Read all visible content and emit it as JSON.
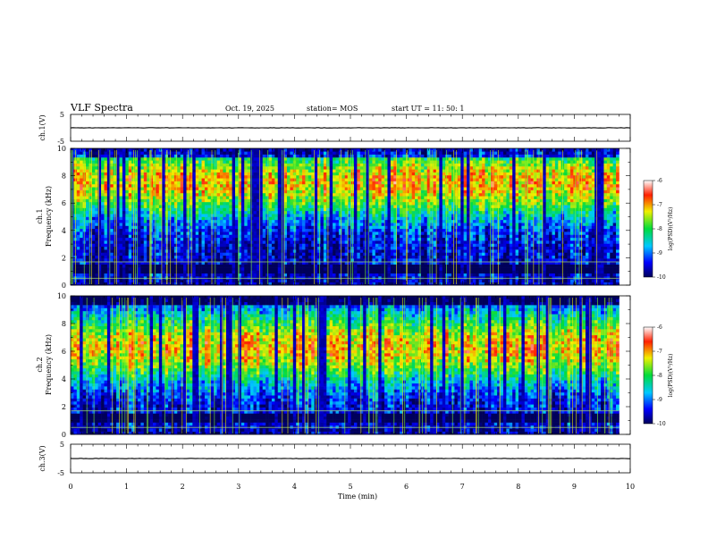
{
  "header": {
    "title": "VLF Spectra",
    "date": "Oct. 19, 2025",
    "station": "station= MOS",
    "start": "start  UT =   11: 50: 1"
  },
  "chart_data": [
    {
      "type": "line",
      "name": "ch1-voltage",
      "ylabel": "ch.1(V)",
      "ylim": [
        -5,
        5
      ],
      "yticks": [
        "5",
        "-5"
      ],
      "xlim": [
        0,
        10
      ],
      "trace_level": 0
    },
    {
      "type": "heatmap",
      "name": "ch1-spectrogram",
      "ylabel": "ch.1\nFrequency (kHz)",
      "ylim": [
        0,
        10
      ],
      "yticks": [
        "0",
        "2",
        "4",
        "6",
        "8",
        "10"
      ],
      "xlim": [
        0,
        10
      ],
      "data_end_min": 9.8,
      "band_center_khz": 7.5,
      "colorbar": {
        "label": "log(PSD)(V²/Hz)",
        "range": [
          -10,
          -6
        ],
        "ticks": [
          "-6",
          "-7",
          "-8",
          "-9",
          "-10"
        ]
      }
    },
    {
      "type": "heatmap",
      "name": "ch2-spectrogram",
      "ylabel": "ch.2\nFrequency (kHz)",
      "ylim": [
        0,
        10
      ],
      "yticks": [
        "0",
        "2",
        "4",
        "6",
        "8",
        "10"
      ],
      "xlim": [
        0,
        10
      ],
      "data_end_min": 9.8,
      "band_center_khz": 6.3,
      "colorbar": {
        "label": "log(PSD)(V²/Hz)",
        "range": [
          -10,
          -6
        ],
        "ticks": [
          "-6",
          "-7",
          "-8",
          "-9",
          "-10"
        ]
      }
    },
    {
      "type": "line",
      "name": "ch3-voltage",
      "ylabel": "ch.3(V)",
      "ylim": [
        -5,
        5
      ],
      "yticks": [
        "5",
        "-5"
      ],
      "xlim": [
        0,
        10
      ],
      "trace_level": 0
    }
  ],
  "xaxis": {
    "label": "Time (min)",
    "ticks": [
      "0",
      "1",
      "2",
      "3",
      "4",
      "5",
      "6",
      "7",
      "8",
      "9",
      "10"
    ]
  }
}
